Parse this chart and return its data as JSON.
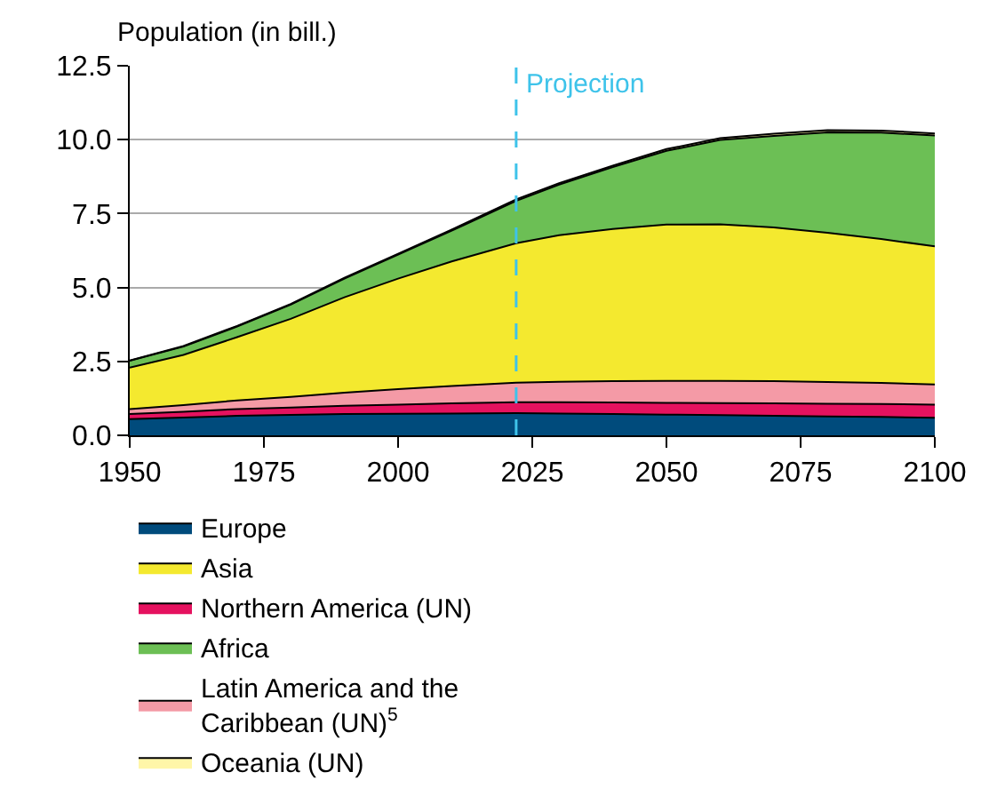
{
  "chart_data": {
    "type": "area",
    "stacked": true,
    "ylabel": "Population (in bill.)",
    "x": [
      1950,
      1960,
      1970,
      1980,
      1990,
      2000,
      2010,
      2022,
      2030,
      2040,
      2050,
      2060,
      2070,
      2080,
      2090,
      2100
    ],
    "series": [
      {
        "name": "Europe",
        "color": "#004b7c",
        "values": [
          0.55,
          0.6,
          0.66,
          0.69,
          0.72,
          0.73,
          0.74,
          0.75,
          0.74,
          0.72,
          0.7,
          0.68,
          0.66,
          0.64,
          0.62,
          0.59
        ]
      },
      {
        "name": "Northern America (UN)",
        "color": "#e5125f",
        "values": [
          0.17,
          0.2,
          0.23,
          0.25,
          0.28,
          0.31,
          0.34,
          0.37,
          0.38,
          0.39,
          0.4,
          0.41,
          0.42,
          0.43,
          0.44,
          0.45
        ]
      },
      {
        "name": "Latin America and the Caribbean (UN)$^{5}$",
        "color": "#f49aa6",
        "values": [
          0.17,
          0.22,
          0.29,
          0.36,
          0.44,
          0.52,
          0.59,
          0.66,
          0.69,
          0.72,
          0.74,
          0.75,
          0.75,
          0.73,
          0.71,
          0.68
        ]
      },
      {
        "name": "Asia",
        "color": "#f4e92f",
        "values": [
          1.4,
          1.7,
          2.14,
          2.64,
          3.23,
          3.74,
          4.21,
          4.72,
          4.96,
          5.15,
          5.29,
          5.3,
          5.2,
          5.05,
          4.87,
          4.67
        ]
      },
      {
        "name": "Africa",
        "color": "#6cbf55",
        "values": [
          0.23,
          0.28,
          0.36,
          0.48,
          0.63,
          0.81,
          1.04,
          1.43,
          1.71,
          2.09,
          2.49,
          2.85,
          3.1,
          3.4,
          3.6,
          3.75
        ]
      },
      {
        "name": "Oceania (UN)",
        "color": "#fff6a8",
        "values": [
          0.01,
          0.02,
          0.02,
          0.02,
          0.03,
          0.03,
          0.04,
          0.05,
          0.05,
          0.05,
          0.06,
          0.06,
          0.07,
          0.07,
          0.07,
          0.07
        ]
      }
    ],
    "xlim": [
      1950,
      2100
    ],
    "xticks": [
      1950,
      1975,
      2000,
      2025,
      2050,
      2075,
      2100
    ],
    "ylim": [
      0,
      12.5
    ],
    "yticks": [
      {
        "value": 0,
        "label": "0.0"
      },
      2.5,
      {
        "value": 5,
        "label": "5.0"
      },
      7.5,
      {
        "value": 10,
        "label": "10.0"
      },
      12.5
    ],
    "grid": "y",
    "legend": "bottom",
    "ref_lines": [
      {
        "axis": "x",
        "value": 2022,
        "label": "Projection",
        "color": "#3ec3ea",
        "line_style": "dashed"
      }
    ]
  }
}
